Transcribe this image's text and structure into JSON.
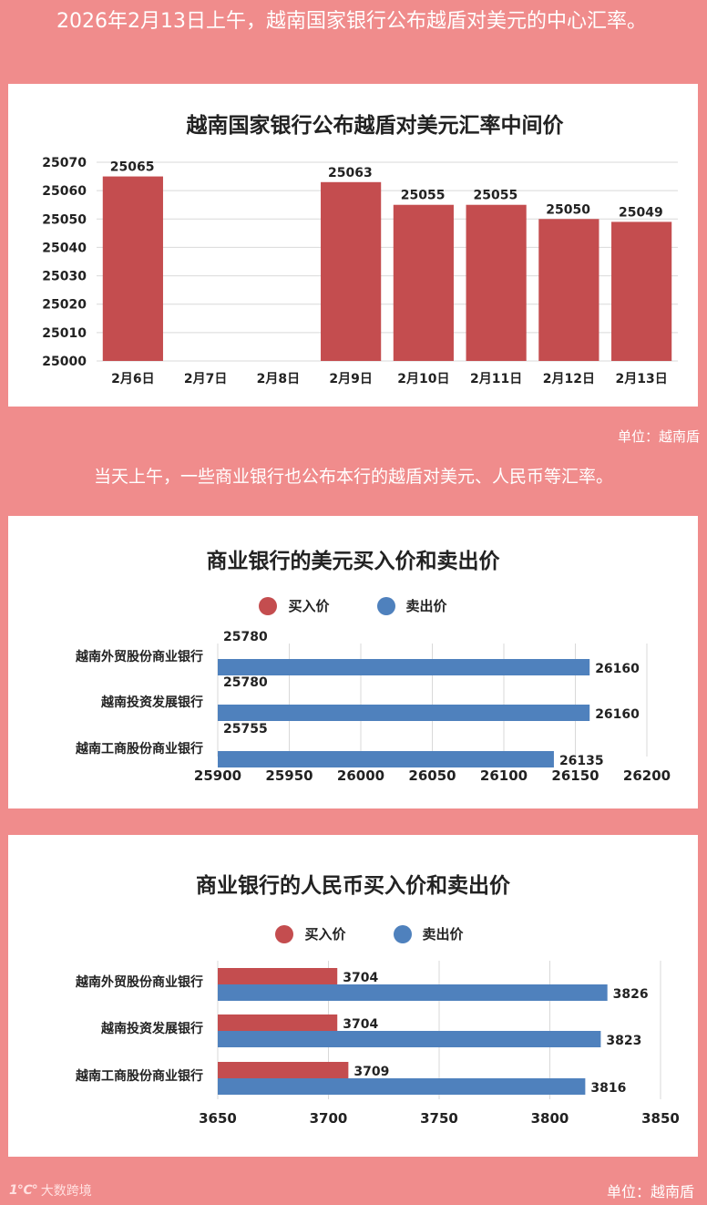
{
  "header": {
    "headline": "2026年2月13日上午，越南国家银行公布越盾对美元的中心汇率。",
    "unit1": "单位：越南盾",
    "subline": "当天上午，一些商业银行也公布本行的越盾对美元、人民币等汇率。",
    "unit2": "单位：越南盾",
    "brand_logo": "1℃°",
    "brand_text": "大数跨境"
  },
  "colors": {
    "background": "#f08c8c",
    "buy": "#c44d4f",
    "sell": "#4f81bd",
    "panel": "#ffffff"
  },
  "legend": {
    "buy": "买入价",
    "sell": "卖出价"
  },
  "chart_data": [
    {
      "type": "bar",
      "title": "越南国家银行公布越盾对美元汇率中间价",
      "categories": [
        "2月6日",
        "2月7日",
        "2月8日",
        "2月9日",
        "2月10日",
        "2月11日",
        "2月12日",
        "2月13日"
      ],
      "values": [
        25065,
        null,
        null,
        25063,
        25055,
        25055,
        25050,
        25049
      ],
      "ylim": [
        25000,
        25070
      ],
      "yticks": [
        25000,
        25010,
        25020,
        25030,
        25040,
        25050,
        25060,
        25070
      ],
      "grid": true
    },
    {
      "type": "bar",
      "orientation": "horizontal",
      "title": "商业银行的美元买入价和卖出价",
      "categories": [
        "越南外贸股份商业银行",
        "越南投资发展银行",
        "越南工商股份商业银行"
      ],
      "series": [
        {
          "name": "买入价",
          "values": [
            25780,
            25780,
            25755
          ]
        },
        {
          "name": "卖出价",
          "values": [
            26160,
            26160,
            26135
          ]
        }
      ],
      "xlim": [
        25900,
        26200
      ],
      "xticks": [
        25900,
        25950,
        26000,
        26050,
        26100,
        26150,
        26200
      ],
      "legend": "top-center",
      "grid": true
    },
    {
      "type": "bar",
      "orientation": "horizontal",
      "title": "商业银行的人民币买入价和卖出价",
      "categories": [
        "越南外贸股份商业银行",
        "越南投资发展银行",
        "越南工商股份商业银行"
      ],
      "series": [
        {
          "name": "买入价",
          "values": [
            3704,
            3704,
            3709
          ]
        },
        {
          "name": "卖出价",
          "values": [
            3826,
            3823,
            3816
          ]
        }
      ],
      "xlim": [
        3650,
        3850
      ],
      "xticks": [
        3650,
        3700,
        3750,
        3800,
        3850
      ],
      "legend": "top-center",
      "grid": true
    }
  ]
}
